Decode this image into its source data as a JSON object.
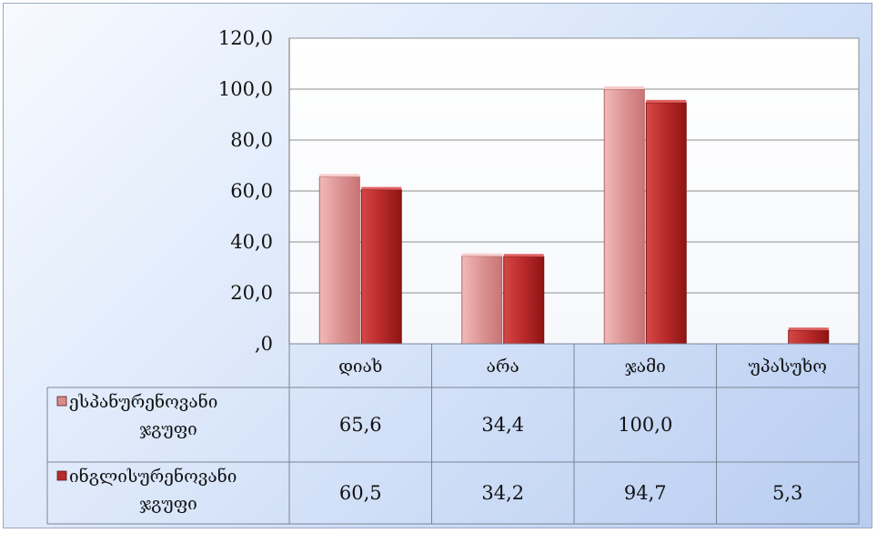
{
  "chart_data": {
    "type": "bar",
    "categories": [
      "დიახ",
      "არა",
      "ჯამი",
      "უპასუხო"
    ],
    "series": [
      {
        "name": "ესპანურენოვანი ჯგუფი",
        "values": [
          65.6,
          34.4,
          100.0,
          null
        ],
        "labels": [
          "65,6",
          "34,4",
          "100,0",
          ""
        ],
        "color": "#d98a8a"
      },
      {
        "name": "ინგლისურენოვანი ჯგუფი",
        "values": [
          60.5,
          34.2,
          94.7,
          5.3
        ],
        "labels": [
          "60,5",
          "34,2",
          "94,7",
          "5,3"
        ],
        "color": "#b82a2a"
      }
    ],
    "y_ticks": [
      ",0",
      "20,0",
      "40,0",
      "60,0",
      "80,0",
      "100,0",
      "120,0"
    ],
    "ylim": [
      0,
      120
    ],
    "grid": true,
    "legend": "data-table"
  }
}
